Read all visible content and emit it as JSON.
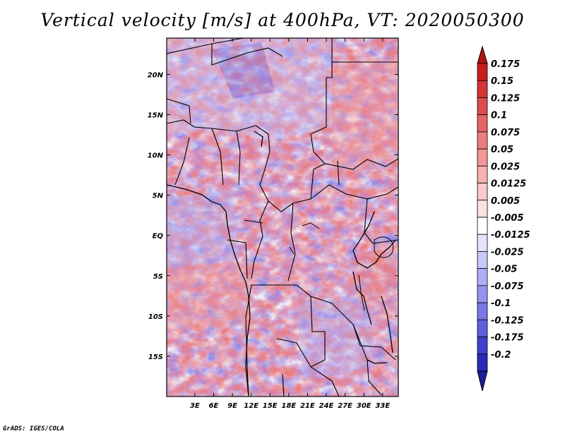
{
  "title": "Vertical velocity [m/s] at 400hPa, VT: 2020050300",
  "credit": "GrADS: IGES/COLA",
  "map": {
    "lon_range": [
      -1.5,
      35.5
    ],
    "lat_range": [
      -20.0,
      24.5
    ],
    "lat_ticks": [
      {
        "value": 20,
        "label": "20N"
      },
      {
        "value": 15,
        "label": "15N"
      },
      {
        "value": 10,
        "label": "10N"
      },
      {
        "value": 5,
        "label": "5N"
      },
      {
        "value": 0,
        "label": "EQ"
      },
      {
        "value": -5,
        "label": "5S"
      },
      {
        "value": -10,
        "label": "10S"
      },
      {
        "value": -15,
        "label": "15S"
      }
    ],
    "lon_ticks": [
      {
        "value": 3,
        "label": "3E"
      },
      {
        "value": 6,
        "label": "6E"
      },
      {
        "value": 9,
        "label": "9E"
      },
      {
        "value": 12,
        "label": "12E"
      },
      {
        "value": 15,
        "label": "15E"
      },
      {
        "value": 18,
        "label": "18E"
      },
      {
        "value": 21,
        "label": "21E"
      },
      {
        "value": 24,
        "label": "24E"
      },
      {
        "value": 27,
        "label": "27E"
      },
      {
        "value": 30,
        "label": "30E"
      },
      {
        "value": 33,
        "label": "33E"
      }
    ]
  },
  "colorbar": {
    "levels": [
      {
        "label": "0.175",
        "color": "#c81e1e"
      },
      {
        "label": "0.15",
        "color": "#d43434"
      },
      {
        "label": "0.125",
        "color": "#de4c4c"
      },
      {
        "label": "0.1",
        "color": "#e66464"
      },
      {
        "label": "0.075",
        "color": "#ec7c7c"
      },
      {
        "label": "0.05",
        "color": "#f29696"
      },
      {
        "label": "0.025",
        "color": "#f6b0b0"
      },
      {
        "label": "0.0125",
        "color": "#fac8c8"
      },
      {
        "label": "0.005",
        "color": "#fde2e2"
      },
      {
        "label": "-0.005",
        "color": "#ffffff"
      },
      {
        "label": "-0.0125",
        "color": "#e2e2fd"
      },
      {
        "label": "-0.025",
        "color": "#c8c8fa"
      },
      {
        "label": "-0.05",
        "color": "#aeaef6"
      },
      {
        "label": "-0.075",
        "color": "#9494f0"
      },
      {
        "label": "-0.1",
        "color": "#7878e8"
      },
      {
        "label": "-0.125",
        "color": "#5e5ede"
      },
      {
        "label": "-0.175",
        "color": "#4040d0"
      },
      {
        "label": "-0.2",
        "color": "#2a2ab8"
      }
    ],
    "top_color": "#b01414",
    "bottom_color": "#1e1e96"
  }
}
